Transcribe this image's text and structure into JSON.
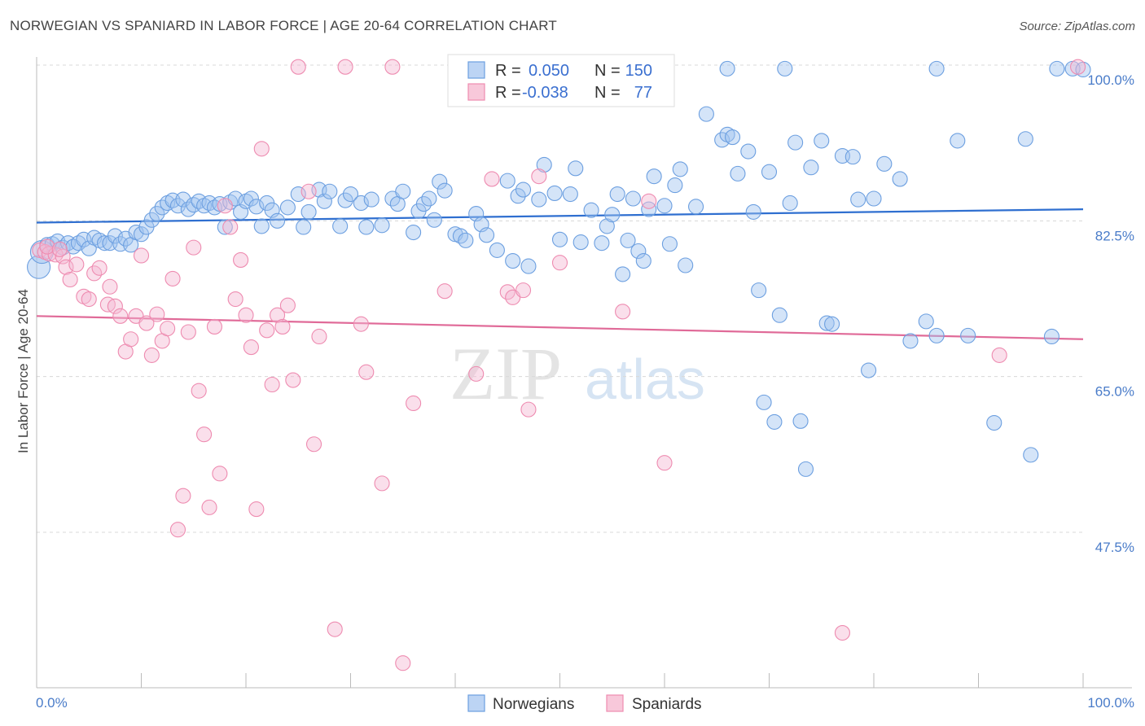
{
  "title": "NORWEGIAN VS SPANIARD IN LABOR FORCE | AGE 20-64 CORRELATION CHART",
  "source": "Source: ZipAtlas.com",
  "watermark": {
    "zip": "ZIP",
    "atlas": "atlas"
  },
  "colors": {
    "norwegians": "#6c9fe0",
    "spaniards": "#ee8bb0",
    "norwegians_line": "#2f6fd0",
    "spaniards_line": "#e06a98",
    "tick": "#4a7cc9"
  },
  "legend": {
    "rows": [
      {
        "r_label": "R =",
        "r_value": "0.050",
        "n_label": "N =",
        "n_value": "150"
      },
      {
        "r_label": "R =",
        "r_value": "-0.038",
        "n_label": "N =",
        "n_value": "77"
      }
    ]
  },
  "bottom_legend": [
    "Norwegians",
    "Spaniards"
  ],
  "chart_data": {
    "type": "scatter",
    "xlabel": "",
    "ylabel": "In Labor Force | Age 20-64",
    "xlim": [
      0,
      100
    ],
    "ylim": [
      29,
      101
    ],
    "x_tick_labels": [
      "0.0%",
      "100.0%"
    ],
    "y_ticks": [
      47.5,
      65.0,
      82.5,
      100.0
    ],
    "y_tick_labels": [
      "47.5%",
      "65.0%",
      "82.5%",
      "100.0%"
    ],
    "grid": "horizontal dashed",
    "legend_position": "top-center",
    "series": [
      {
        "name": "Norwegians",
        "trend": [
          [
            0,
            82.3
          ],
          [
            100,
            83.8
          ]
        ],
        "points": [
          [
            0.2,
            77.3
          ],
          [
            0.5,
            79.0
          ],
          [
            1.0,
            79.8
          ],
          [
            1.5,
            79.9
          ],
          [
            2.0,
            80.2
          ],
          [
            2.5,
            79.5
          ],
          [
            3.0,
            80.0
          ],
          [
            3.5,
            79.6
          ],
          [
            4.0,
            80.0
          ],
          [
            4.5,
            80.4
          ],
          [
            5.0,
            79.4
          ],
          [
            5.5,
            80.6
          ],
          [
            6.0,
            80.3
          ],
          [
            6.5,
            80.0
          ],
          [
            7.0,
            80.0
          ],
          [
            7.5,
            80.8
          ],
          [
            8.0,
            79.9
          ],
          [
            8.5,
            80.5
          ],
          [
            9.0,
            79.8
          ],
          [
            9.5,
            81.2
          ],
          [
            10.0,
            81.0
          ],
          [
            10.5,
            81.8
          ],
          [
            11.0,
            82.6
          ],
          [
            11.5,
            83.3
          ],
          [
            12.0,
            84.0
          ],
          [
            12.5,
            84.5
          ],
          [
            13.0,
            84.8
          ],
          [
            13.5,
            84.2
          ],
          [
            14.0,
            84.9
          ],
          [
            14.5,
            83.8
          ],
          [
            15.0,
            84.3
          ],
          [
            15.5,
            84.7
          ],
          [
            16.0,
            84.2
          ],
          [
            16.5,
            84.5
          ],
          [
            17.0,
            84.0
          ],
          [
            17.5,
            84.4
          ],
          [
            18.0,
            81.8
          ],
          [
            18.5,
            84.6
          ],
          [
            19.0,
            85.0
          ],
          [
            19.5,
            83.5
          ],
          [
            20.0,
            84.7
          ],
          [
            20.5,
            85.0
          ],
          [
            21.0,
            84.1
          ],
          [
            21.5,
            81.9
          ],
          [
            22.0,
            84.5
          ],
          [
            22.5,
            83.7
          ],
          [
            23.0,
            82.5
          ],
          [
            24.0,
            84.0
          ],
          [
            25.0,
            85.5
          ],
          [
            25.5,
            81.8
          ],
          [
            26.0,
            83.5
          ],
          [
            27.0,
            86.0
          ],
          [
            27.5,
            84.7
          ],
          [
            28.0,
            85.8
          ],
          [
            29.0,
            81.9
          ],
          [
            29.5,
            84.8
          ],
          [
            30.0,
            85.5
          ],
          [
            31.0,
            84.5
          ],
          [
            31.5,
            81.8
          ],
          [
            32.0,
            84.9
          ],
          [
            33.0,
            82.0
          ],
          [
            34.0,
            85.0
          ],
          [
            34.5,
            84.4
          ],
          [
            35.0,
            85.8
          ],
          [
            36.0,
            81.2
          ],
          [
            36.5,
            83.6
          ],
          [
            37.0,
            84.4
          ],
          [
            37.5,
            85.0
          ],
          [
            38.0,
            82.6
          ],
          [
            38.5,
            86.9
          ],
          [
            39.0,
            85.9
          ],
          [
            40.0,
            81.0
          ],
          [
            40.5,
            80.8
          ],
          [
            41.0,
            80.3
          ],
          [
            42.0,
            83.3
          ],
          [
            42.5,
            82.1
          ],
          [
            43.0,
            80.9
          ],
          [
            44.0,
            79.2
          ],
          [
            45.0,
            87.0
          ],
          [
            45.5,
            78.0
          ],
          [
            46.0,
            85.3
          ],
          [
            46.5,
            86.0
          ],
          [
            47.0,
            77.4
          ],
          [
            48.0,
            84.9
          ],
          [
            48.5,
            88.8
          ],
          [
            49.5,
            85.6
          ],
          [
            50.0,
            80.4
          ],
          [
            51.0,
            85.5
          ],
          [
            51.5,
            88.4
          ],
          [
            52.0,
            80.1
          ],
          [
            53.0,
            83.7
          ],
          [
            54.0,
            80.0
          ],
          [
            54.5,
            81.9
          ],
          [
            55.0,
            83.2
          ],
          [
            55.5,
            85.5
          ],
          [
            56.0,
            76.5
          ],
          [
            56.5,
            80.3
          ],
          [
            57.0,
            85.0
          ],
          [
            57.5,
            79.1
          ],
          [
            58.0,
            78.0
          ],
          [
            58.5,
            83.8
          ],
          [
            59.0,
            87.5
          ],
          [
            60.0,
            84.2
          ],
          [
            60.5,
            79.9
          ],
          [
            61.0,
            86.5
          ],
          [
            61.5,
            88.3
          ],
          [
            62.0,
            77.5
          ],
          [
            63.0,
            84.1
          ],
          [
            64.0,
            94.5
          ],
          [
            65.5,
            91.6
          ],
          [
            66.0,
            92.2
          ],
          [
            66.5,
            91.9
          ],
          [
            67.0,
            87.8
          ],
          [
            68.0,
            90.3
          ],
          [
            68.5,
            83.5
          ],
          [
            69.0,
            74.7
          ],
          [
            69.5,
            62.1
          ],
          [
            70.0,
            88.0
          ],
          [
            70.5,
            59.9
          ],
          [
            71.0,
            71.9
          ],
          [
            72.0,
            84.5
          ],
          [
            72.5,
            91.3
          ],
          [
            73.0,
            60.0
          ],
          [
            73.5,
            54.6
          ],
          [
            74.0,
            88.5
          ],
          [
            75.0,
            91.5
          ],
          [
            75.5,
            71.0
          ],
          [
            76.0,
            70.9
          ],
          [
            77.0,
            89.8
          ],
          [
            78.0,
            89.7
          ],
          [
            78.5,
            84.9
          ],
          [
            79.5,
            65.7
          ],
          [
            80.0,
            85.0
          ],
          [
            81.0,
            88.9
          ],
          [
            82.5,
            87.2
          ],
          [
            83.5,
            69.0
          ],
          [
            85.0,
            71.2
          ],
          [
            86.0,
            69.6
          ],
          [
            88.0,
            91.5
          ],
          [
            89.0,
            69.6
          ],
          [
            91.5,
            59.8
          ],
          [
            94.5,
            91.7
          ],
          [
            95.0,
            56.2
          ],
          [
            97.0,
            69.5
          ],
          [
            99.0,
            99.6
          ],
          [
            100.0,
            99.5
          ],
          [
            66.0,
            99.6
          ],
          [
            71.5,
            99.6
          ],
          [
            86.0,
            99.6
          ],
          [
            97.5,
            99.6
          ]
        ]
      },
      {
        "name": "Spaniards",
        "trend": [
          [
            0,
            71.8
          ],
          [
            100,
            69.2
          ]
        ],
        "points": [
          [
            0.3,
            79.2
          ],
          [
            0.8,
            79.0
          ],
          [
            1.2,
            78.8
          ],
          [
            1.8,
            78.7
          ],
          [
            2.5,
            78.5
          ],
          [
            2.8,
            77.3
          ],
          [
            3.2,
            75.9
          ],
          [
            3.8,
            77.6
          ],
          [
            4.5,
            74.0
          ],
          [
            5.0,
            73.7
          ],
          [
            5.5,
            76.6
          ],
          [
            6.0,
            77.2
          ],
          [
            6.8,
            73.1
          ],
          [
            7.0,
            75.1
          ],
          [
            7.5,
            72.9
          ],
          [
            8.0,
            71.8
          ],
          [
            8.5,
            67.8
          ],
          [
            9.0,
            69.2
          ],
          [
            9.5,
            71.8
          ],
          [
            10.0,
            78.6
          ],
          [
            10.5,
            71.0
          ],
          [
            11.0,
            67.4
          ],
          [
            11.5,
            72.0
          ],
          [
            12.0,
            69.0
          ],
          [
            12.5,
            70.4
          ],
          [
            13.0,
            76.0
          ],
          [
            13.5,
            47.8
          ],
          [
            14.0,
            51.6
          ],
          [
            14.5,
            70.0
          ],
          [
            15.0,
            79.5
          ],
          [
            15.5,
            63.4
          ],
          [
            16.0,
            58.5
          ],
          [
            16.5,
            50.3
          ],
          [
            17.0,
            70.6
          ],
          [
            17.5,
            54.1
          ],
          [
            18.0,
            84.2
          ],
          [
            18.5,
            81.8
          ],
          [
            19.0,
            73.7
          ],
          [
            19.5,
            78.1
          ],
          [
            20.0,
            71.9
          ],
          [
            20.5,
            68.3
          ],
          [
            21.0,
            50.1
          ],
          [
            21.5,
            90.6
          ],
          [
            22.0,
            70.2
          ],
          [
            22.5,
            64.1
          ],
          [
            23.0,
            71.9
          ],
          [
            23.5,
            70.6
          ],
          [
            24.0,
            73.0
          ],
          [
            24.5,
            64.6
          ],
          [
            25.0,
            99.8
          ],
          [
            26.0,
            85.8
          ],
          [
            26.5,
            57.4
          ],
          [
            27.0,
            69.5
          ],
          [
            28.5,
            36.6
          ],
          [
            29.5,
            99.8
          ],
          [
            31.0,
            70.9
          ],
          [
            31.5,
            65.5
          ],
          [
            33.0,
            53.0
          ],
          [
            34.0,
            99.8
          ],
          [
            35.0,
            32.8
          ],
          [
            36.0,
            62.0
          ],
          [
            39.0,
            74.6
          ],
          [
            42.0,
            65.3
          ],
          [
            43.5,
            87.2
          ],
          [
            45.0,
            74.5
          ],
          [
            45.5,
            73.9
          ],
          [
            46.5,
            74.7
          ],
          [
            47.0,
            61.3
          ],
          [
            48.0,
            87.5
          ],
          [
            50.0,
            77.8
          ],
          [
            56.0,
            72.3
          ],
          [
            58.5,
            84.7
          ],
          [
            60.0,
            55.3
          ],
          [
            77.0,
            36.2
          ],
          [
            92.0,
            67.4
          ],
          [
            1.0,
            79.6
          ],
          [
            2.2,
            79.3
          ],
          [
            99.5,
            99.8
          ]
        ]
      }
    ]
  }
}
